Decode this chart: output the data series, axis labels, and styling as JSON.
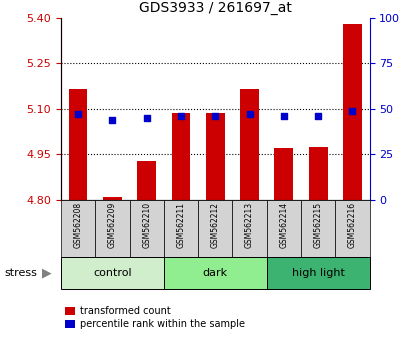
{
  "title": "GDS3933 / 261697_at",
  "samples": [
    "GSM562208",
    "GSM562209",
    "GSM562210",
    "GSM562211",
    "GSM562212",
    "GSM562213",
    "GSM562214",
    "GSM562215",
    "GSM562216"
  ],
  "transformed_counts": [
    5.165,
    4.81,
    4.93,
    5.085,
    5.085,
    5.165,
    4.97,
    4.975,
    5.38
  ],
  "percentile_ranks": [
    47,
    44,
    45,
    46,
    46,
    47,
    46,
    46,
    49
  ],
  "bar_bottom": 4.8,
  "ylim_left": [
    4.8,
    5.4
  ],
  "ylim_right": [
    0,
    100
  ],
  "yticks_left": [
    4.8,
    4.95,
    5.1,
    5.25,
    5.4
  ],
  "yticks_right": [
    0,
    25,
    50,
    75,
    100
  ],
  "hlines": [
    4.95,
    5.1,
    5.25
  ],
  "groups": [
    {
      "label": "control",
      "start": 0,
      "end": 3,
      "color": "#d0edcc"
    },
    {
      "label": "dark",
      "start": 3,
      "end": 6,
      "color": "#90ee90"
    },
    {
      "label": "high light",
      "start": 6,
      "end": 9,
      "color": "#3cb371"
    }
  ],
  "bar_color": "#cc0000",
  "dot_color": "#0000cc",
  "stress_label": "stress",
  "axis_color_left": "#cc0000",
  "axis_color_right": "#0000cc",
  "sample_bg_color": "#d3d3d3"
}
